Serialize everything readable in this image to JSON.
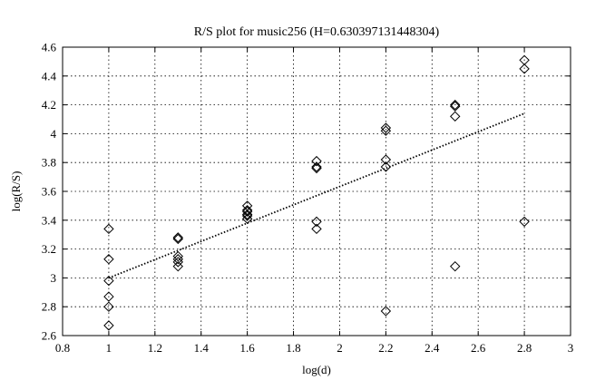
{
  "chart_data": {
    "type": "scatter",
    "title": "R/S plot for music256 (H=0.630397131448304)",
    "xlabel": "log(d)",
    "ylabel": "log(R/S)",
    "xlim": [
      0.8,
      3.0
    ],
    "ylim": [
      2.6,
      4.6
    ],
    "xticks": [
      "0.8",
      "1",
      "1.2",
      "1.4",
      "1.6",
      "1.8",
      "2",
      "2.2",
      "2.4",
      "2.6",
      "2.8",
      "3"
    ],
    "yticks": [
      "2.6",
      "2.8",
      "3",
      "3.2",
      "3.4",
      "3.6",
      "3.8",
      "4",
      "4.2",
      "4.4",
      "4.6"
    ],
    "grid": true,
    "marker": "diamond",
    "series": [
      {
        "x": [
          1.0,
          1.0,
          1.0,
          1.0,
          1.0,
          1.0,
          1.3,
          1.3,
          1.3,
          1.3,
          1.3,
          1.3,
          1.6,
          1.6,
          1.6,
          1.6,
          1.6,
          1.6,
          1.9,
          1.9,
          1.9,
          1.9,
          1.9,
          2.2,
          2.2,
          2.2,
          2.2,
          2.2,
          2.5,
          2.5,
          2.5,
          2.5,
          2.8,
          2.8,
          2.8
        ],
        "y": [
          3.34,
          3.13,
          2.98,
          2.87,
          2.8,
          2.67,
          3.28,
          3.27,
          3.15,
          3.13,
          3.11,
          3.08,
          3.5,
          3.47,
          3.46,
          3.44,
          3.43,
          3.41,
          3.81,
          3.77,
          3.76,
          3.39,
          3.34,
          4.04,
          4.02,
          3.82,
          3.77,
          2.77,
          4.2,
          4.19,
          4.12,
          3.08,
          4.51,
          4.45,
          3.39
        ]
      }
    ],
    "fit_line": {
      "x": [
        1.0,
        2.8
      ],
      "y": [
        3.0,
        4.14
      ]
    }
  }
}
